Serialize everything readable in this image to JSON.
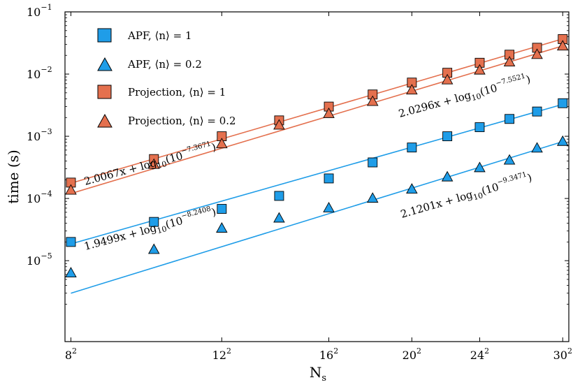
{
  "chart_data": {
    "type": "scatter",
    "xscale": "log",
    "yscale": "log",
    "xlabel": "N_s",
    "xlabel_main": "N",
    "xlabel_sub": "s",
    "ylabel": "time (s)",
    "xlim": [
      62,
      930
    ],
    "ylim": [
      5e-07,
      0.1
    ],
    "x_ticks": [
      {
        "base": "8",
        "exp": "2",
        "value": 64
      },
      {
        "base": "12",
        "exp": "2",
        "value": 144
      },
      {
        "base": "16",
        "exp": "2",
        "value": 256
      },
      {
        "base": "20",
        "exp": "2",
        "value": 400
      },
      {
        "base": "24",
        "exp": "2",
        "value": 576
      },
      {
        "base": "30",
        "exp": "2",
        "value": 900
      }
    ],
    "y_ticks": [
      {
        "base": "10",
        "exp": "−5",
        "value": 1e-05
      },
      {
        "base": "10",
        "exp": "−4",
        "value": 0.0001
      },
      {
        "base": "10",
        "exp": "−3",
        "value": 0.001
      },
      {
        "base": "10",
        "exp": "−2",
        "value": 0.01
      },
      {
        "base": "10",
        "exp": "−1",
        "value": 0.1
      }
    ],
    "legend_position": "top-left",
    "series": [
      {
        "name": "APF, ⟨n⟩ = 1",
        "label_main": "APF, ⟨n⟩ = 1",
        "marker": "square",
        "color": "#1f9de8",
        "x": [
          64,
          100,
          144,
          196,
          256,
          324,
          400,
          484,
          576,
          676,
          784,
          900
        ],
        "y": [
          2e-05,
          4.2e-05,
          6.8e-05,
          0.00011,
          0.00021,
          0.00038,
          0.00066,
          0.001,
          0.0014,
          0.0019,
          0.0025,
          0.0034
        ]
      },
      {
        "name": "APF, ⟨n⟩ = 0.2",
        "label_main": "APF, ⟨n⟩ = 0.2",
        "marker": "triangle",
        "color": "#1f9de8",
        "x": [
          64,
          100,
          144,
          196,
          256,
          324,
          400,
          484,
          576,
          676,
          784,
          900
        ],
        "y": [
          6.3e-06,
          1.5e-05,
          3.3e-05,
          4.8e-05,
          7e-05,
          0.0001,
          0.00014,
          0.00022,
          0.00031,
          0.00041,
          0.00064,
          0.00082
        ]
      },
      {
        "name": "Projection, ⟨n⟩ = 1",
        "label_main": "Projection, ⟨n⟩ = 1",
        "marker": "square",
        "color": "#e4704e",
        "x": [
          64,
          100,
          144,
          196,
          256,
          324,
          400,
          484,
          576,
          676,
          784,
          900
        ],
        "y": [
          0.00018,
          0.00043,
          0.001,
          0.0018,
          0.003,
          0.0047,
          0.0073,
          0.0105,
          0.0152,
          0.0205,
          0.0265,
          0.0365
        ]
      },
      {
        "name": "Projection, ⟨n⟩ = 0.2",
        "label_main": "Projection, ⟨n⟩ = 0.2",
        "marker": "triangle",
        "color": "#e4704e",
        "x": [
          64,
          100,
          144,
          196,
          256,
          324,
          400,
          484,
          576,
          676,
          784,
          900
        ],
        "y": [
          0.000135,
          0.00035,
          0.00075,
          0.0015,
          0.0023,
          0.0036,
          0.0055,
          0.008,
          0.0115,
          0.0155,
          0.0205,
          0.028
        ]
      }
    ],
    "fit_lines": [
      {
        "color": "#1f9de8",
        "x_range": [
          64,
          900
        ],
        "y_range": [
          1.86e-05,
          0.00326
        ]
      },
      {
        "color": "#1f9de8",
        "x_range": [
          64,
          900
        ],
        "y_range": [
          3e-06,
          0.00082
        ]
      },
      {
        "color": "#e4704e",
        "x_range": [
          64,
          900
        ],
        "y_range": [
          0.000176,
          0.0368
        ]
      },
      {
        "color": "#e4704e",
        "x_range": [
          64,
          900
        ],
        "y_range": [
          0.00012,
          0.0284
        ]
      }
    ],
    "annotations": [
      {
        "text_prefix": "2.0067x + log",
        "sub": "10",
        "base": "(10",
        "exp": "−7.3671",
        "close": ")",
        "angle": -15
      },
      {
        "text_prefix": "2.0296x + log",
        "sub": "10",
        "base": "(10",
        "exp": "−7.5521",
        "close": ")",
        "angle": -15
      },
      {
        "text_prefix": "1.9499x + log",
        "sub": "10",
        "base": "(10",
        "exp": "−8.2408",
        "close": ")",
        "angle": -15
      },
      {
        "text_prefix": "2.1201x + log",
        "sub": "10",
        "base": "(10",
        "exp": "−9.3471",
        "close": ")",
        "angle": -16
      }
    ]
  }
}
